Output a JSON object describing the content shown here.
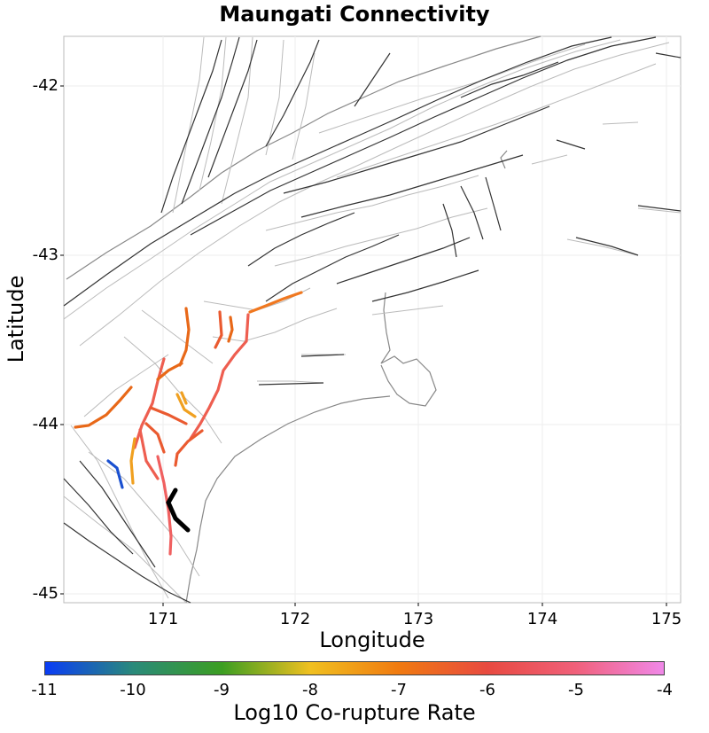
{
  "title": "Maungati Connectivity",
  "axes": {
    "xlabel": "Longitude",
    "ylabel": "Latitude",
    "xticks": [
      "171",
      "172",
      "173",
      "174",
      "175"
    ],
    "yticks": [
      "-42",
      "-43",
      "-44",
      "-45"
    ],
    "xlim": [
      170.0,
      175.1
    ],
    "ylim": [
      -45.05,
      -41.72
    ]
  },
  "colorbar": {
    "label": "Log10 Co-rupture Rate",
    "ticks": [
      "-11",
      "-10",
      "-9",
      "-8",
      "-7",
      "-6",
      "-5",
      "-4"
    ],
    "range": [
      -11,
      -4
    ],
    "stops": [
      "#0a3cf5",
      "#2a8a7a",
      "#3c9e22",
      "#f0c020",
      "#f07a10",
      "#e84a40",
      "#f0607a",
      "#f088e8"
    ]
  },
  "colors": {
    "source_fault": "#000000",
    "background_fault": "#333333",
    "fault_outline": "#bbbbbb",
    "coastline": "#888888",
    "grid": "#eeeeee"
  },
  "source_fault_name": "Maungati"
}
